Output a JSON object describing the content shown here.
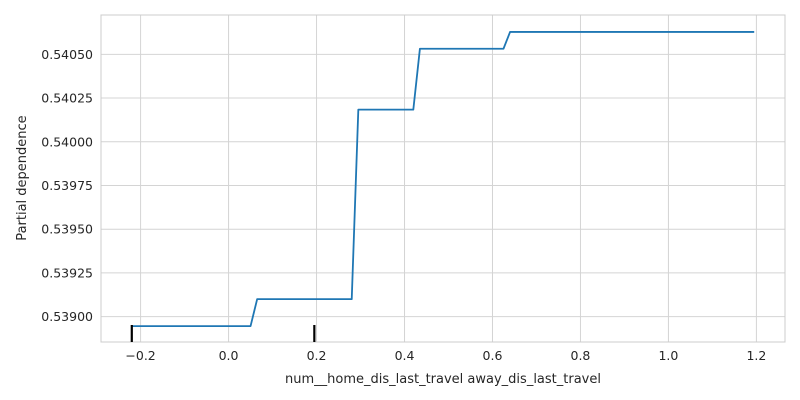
{
  "chart_data": {
    "type": "line",
    "title": "",
    "xlabel": "num__home_dis_last_travel away_dis_last_travel",
    "ylabel": "Partial dependence",
    "xlim": [
      -0.29,
      1.265
    ],
    "ylim": [
      0.538855,
      0.540725
    ],
    "xticks": [
      -0.2,
      0.0,
      0.2,
      0.4,
      0.6,
      0.8,
      1.0,
      1.2
    ],
    "xtick_labels": [
      "−0.2",
      "0.0",
      "0.2",
      "0.4",
      "0.6",
      "0.8",
      "1.0",
      "1.2"
    ],
    "yticks": [
      0.539,
      0.53925,
      0.5395,
      0.53975,
      0.54,
      0.54025,
      0.5405
    ],
    "ytick_labels": [
      "0.53900",
      "0.53925",
      "0.53950",
      "0.53975",
      "0.54000",
      "0.54025",
      "0.54050"
    ],
    "grid": true,
    "colors": {
      "line": "#1f77b4",
      "grid": "#d4d4d4",
      "rug": "#000000",
      "spine": "#cccccc"
    },
    "series": [
      {
        "name": "",
        "x": [
          -0.22,
          0.05,
          0.065,
          0.28,
          0.295,
          0.42,
          0.435,
          0.625,
          0.64,
          1.195
        ],
        "y": [
          0.538946,
          0.538946,
          0.5391,
          0.5391,
          0.540184,
          0.540184,
          0.540532,
          0.540532,
          0.540628,
          0.540628
        ]
      }
    ],
    "rug": [
      -0.22,
      0.195
    ]
  }
}
